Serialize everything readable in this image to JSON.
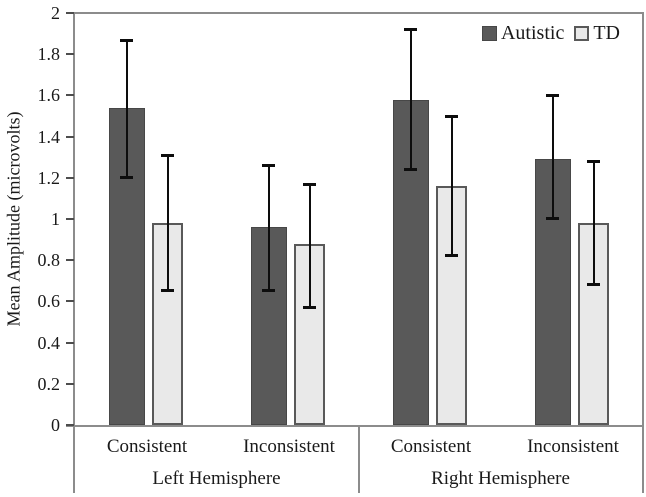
{
  "chart_data": {
    "type": "bar",
    "title": "",
    "xlabel": "",
    "ylabel": "Mean Amplitude (microvolts)",
    "ylim": [
      0,
      2
    ],
    "grid": false,
    "legend_position": "top-right",
    "legend": [
      "Autistic",
      "TD"
    ],
    "y_ticks": [
      {
        "value": 0,
        "label": "0"
      },
      {
        "value": 0.2,
        "label": "0.2"
      },
      {
        "value": 0.4,
        "label": "0.4"
      },
      {
        "value": 0.6,
        "label": "0.6"
      },
      {
        "value": 0.8,
        "label": "0.8"
      },
      {
        "value": 1,
        "label": "1"
      },
      {
        "value": 1.2,
        "label": "1.2"
      },
      {
        "value": 1.4,
        "label": "1.4"
      },
      {
        "value": 1.6,
        "label": "1.6"
      },
      {
        "value": 1.8,
        "label": "1.8"
      },
      {
        "value": 2,
        "label": "2"
      }
    ],
    "groups": [
      {
        "label": "Left Hemisphere",
        "conditions": [
          {
            "label": "Consistent",
            "bars": [
              {
                "series": "Autistic",
                "value": 1.54,
                "err_low": 1.2,
                "err_high": 1.87
              },
              {
                "series": "TD",
                "value": 0.98,
                "err_low": 0.65,
                "err_high": 1.31
              }
            ]
          },
          {
            "label": "Inconsistent",
            "bars": [
              {
                "series": "Autistic",
                "value": 0.96,
                "err_low": 0.65,
                "err_high": 1.26
              },
              {
                "series": "TD",
                "value": 0.88,
                "err_low": 0.57,
                "err_high": 1.17
              }
            ]
          }
        ]
      },
      {
        "label": "Right Hemisphere",
        "conditions": [
          {
            "label": "Consistent",
            "bars": [
              {
                "series": "Autistic",
                "value": 1.58,
                "err_low": 1.24,
                "err_high": 1.92
              },
              {
                "series": "TD",
                "value": 1.16,
                "err_low": 0.82,
                "err_high": 1.5
              }
            ]
          },
          {
            "label": "Inconsistent",
            "bars": [
              {
                "series": "Autistic",
                "value": 1.29,
                "err_low": 1.0,
                "err_high": 1.6
              },
              {
                "series": "TD",
                "value": 0.98,
                "err_low": 0.68,
                "err_high": 1.28
              }
            ]
          }
        ]
      }
    ],
    "colors": {
      "autistic_fill": "#595959",
      "autistic_border": "#474747",
      "td_fill": "#e9e9e9",
      "td_border": "#595959",
      "error_bar": "#0d0d0d",
      "frame": "#8c8c8c",
      "text": "#1a1a1a"
    }
  }
}
